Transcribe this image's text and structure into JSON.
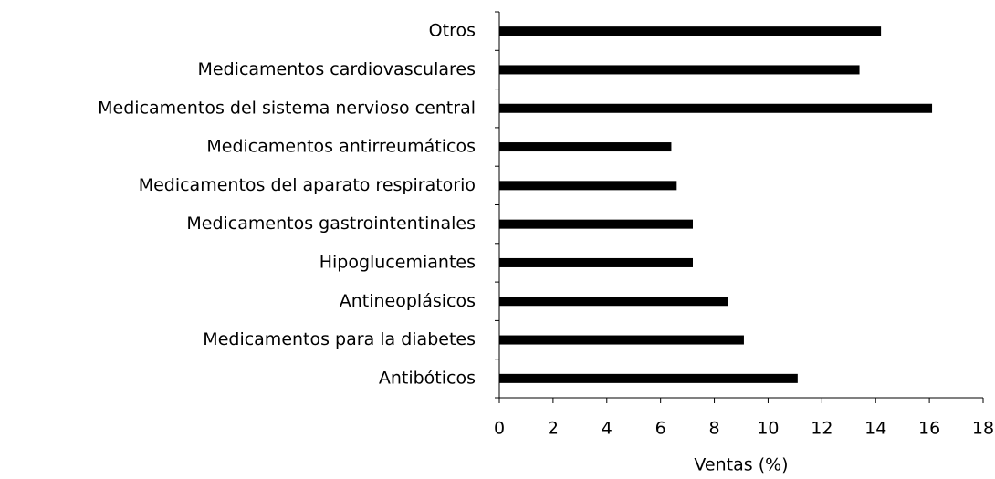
{
  "chart_data": {
    "type": "bar",
    "orientation": "horizontal",
    "x_label": "Ventas (%)",
    "categories": [
      "Otros",
      "Medicamentos cardiovasculares",
      "Medicamentos del sistema nervioso central",
      "Medicamentos antirreumáticos",
      "Medicamentos del aparato respiratorio",
      "Medicamentos gastrointentinales",
      "Hipoglucemiantes",
      "Antineoplásicos",
      "Medicamentos para la diabetes",
      "Antibóticos"
    ],
    "values": [
      14.2,
      13.4,
      16.1,
      6.4,
      6.6,
      7.2,
      7.2,
      8.5,
      9.1,
      11.1
    ],
    "color": "#000000",
    "xlim": [
      0,
      18
    ],
    "xticks": [
      0,
      2,
      4,
      6,
      8,
      10,
      12,
      14,
      16,
      18
    ],
    "grid": false
  }
}
